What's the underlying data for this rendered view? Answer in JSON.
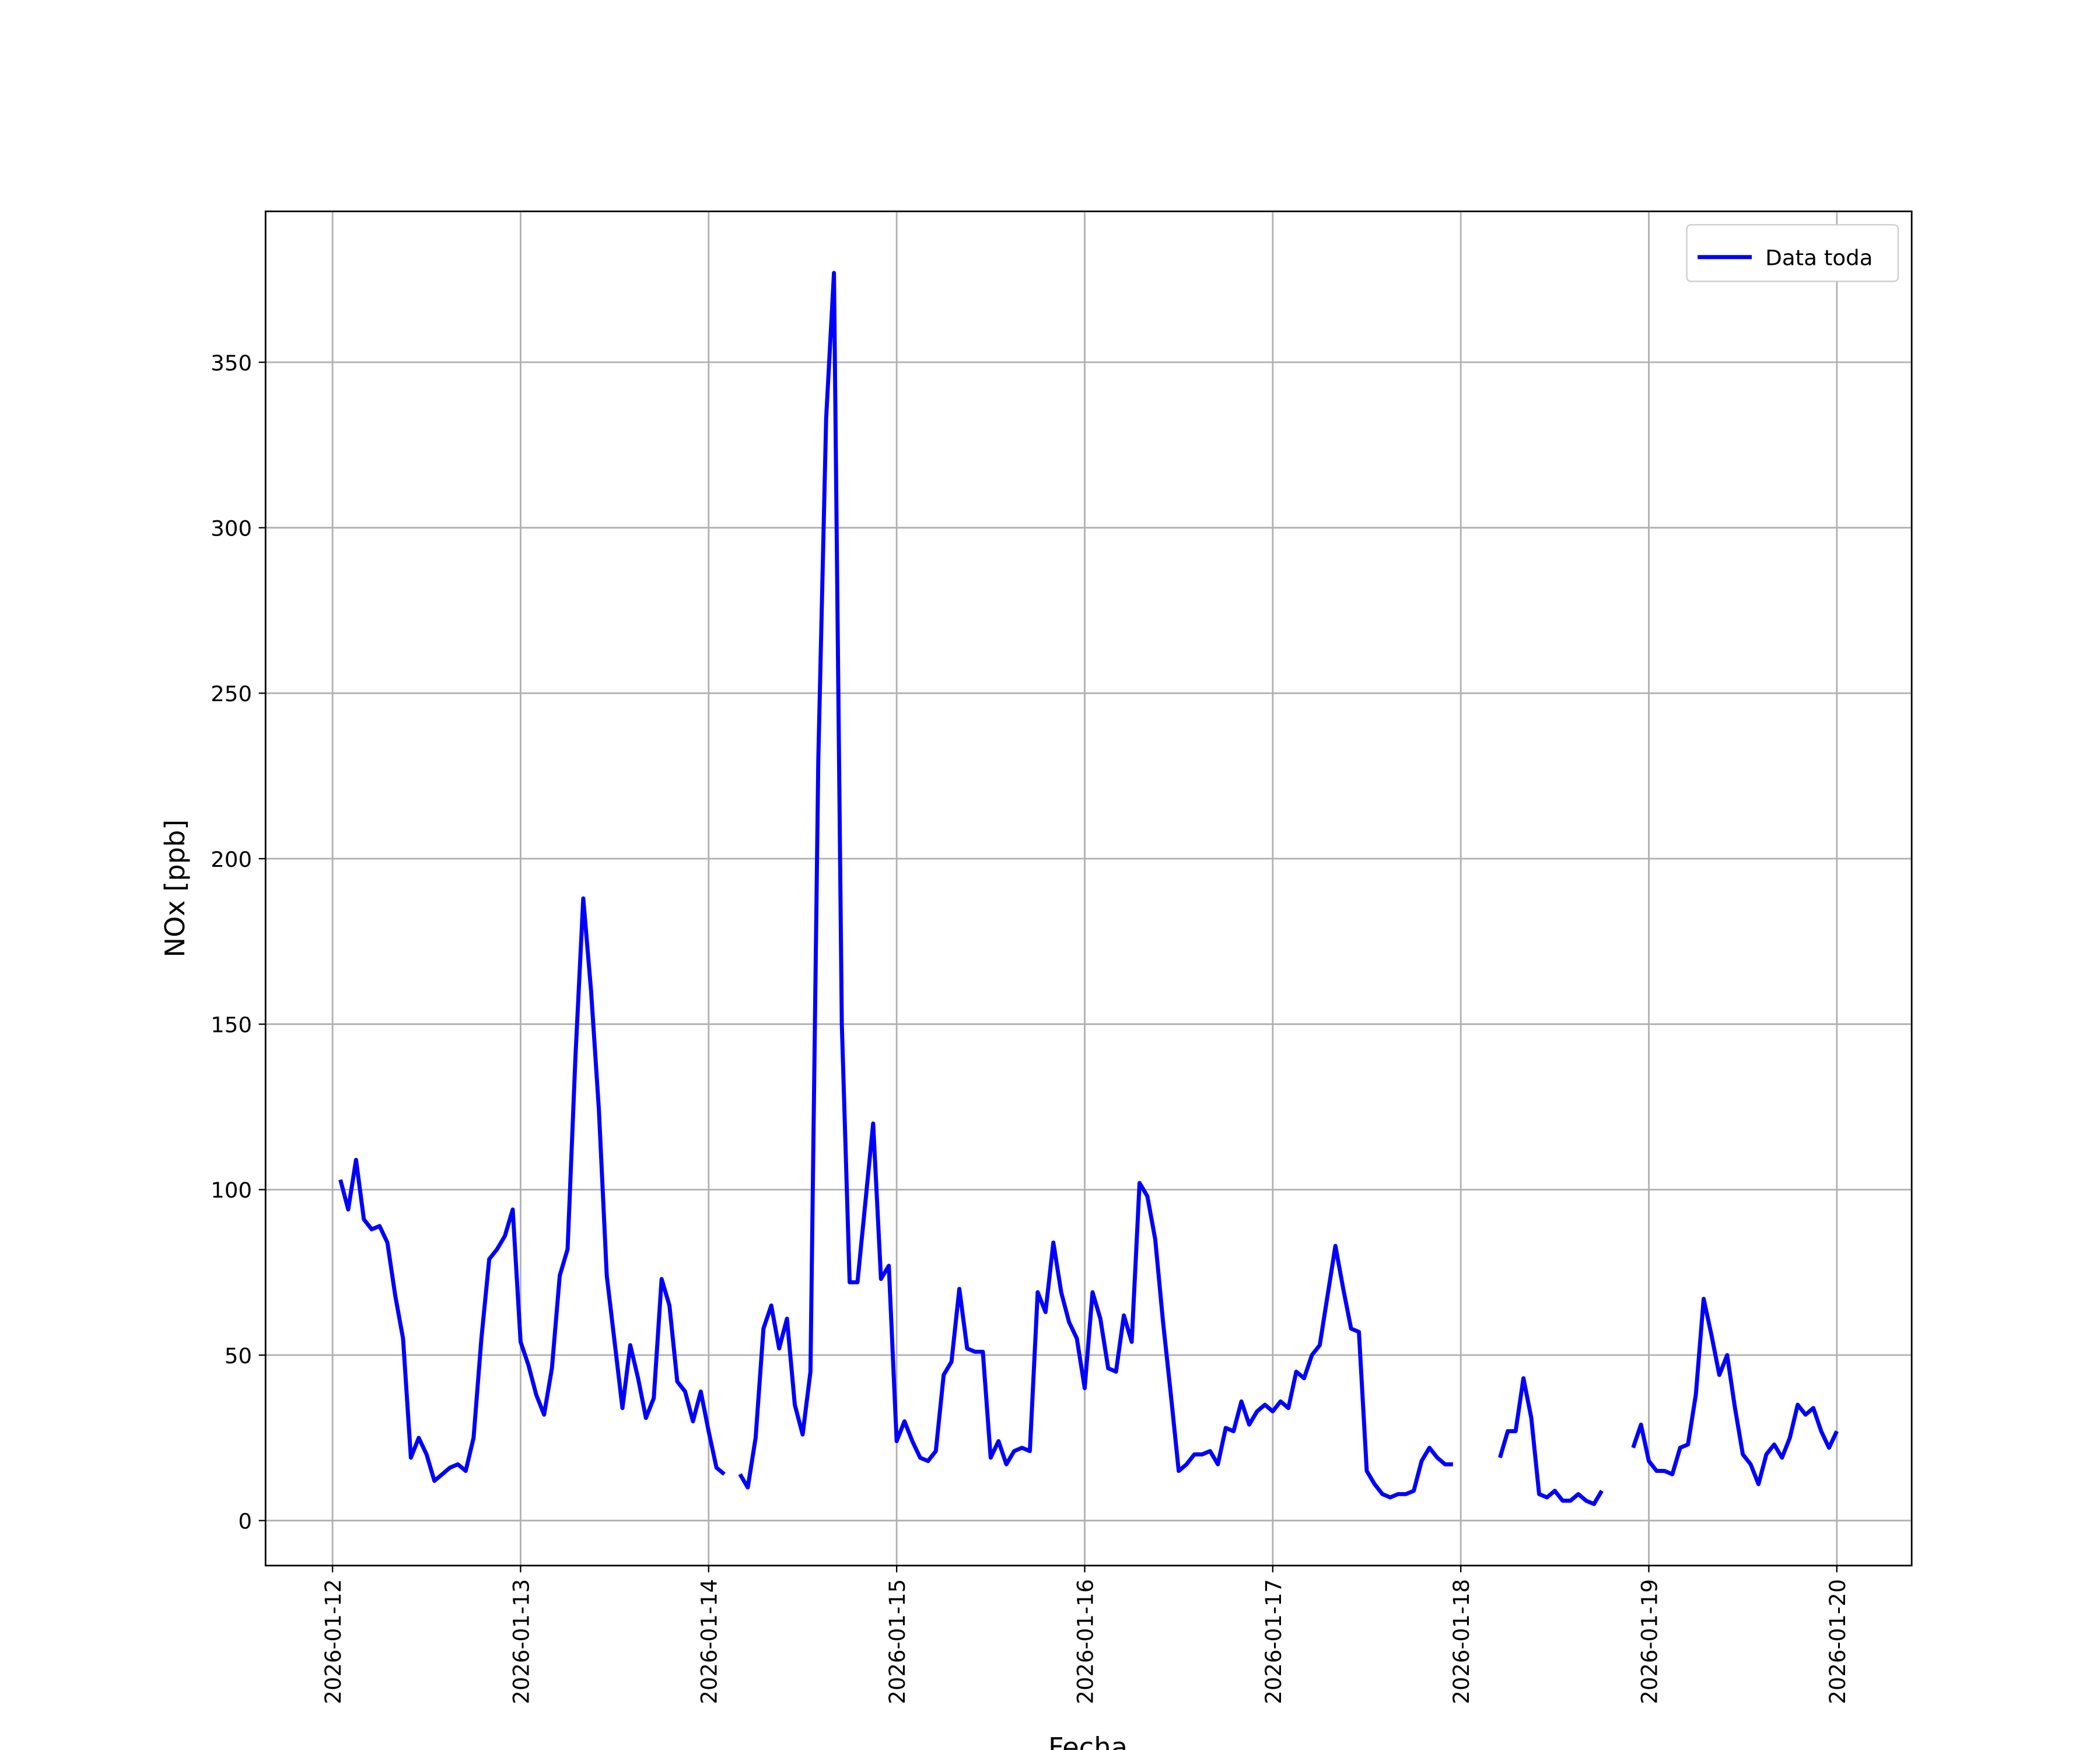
{
  "chart_data": {
    "type": "line",
    "xlabel": "Fecha",
    "ylabel": "NOx [ppb]",
    "x": [
      1,
      2,
      3,
      4,
      5,
      6,
      7,
      8,
      9,
      10,
      11,
      12,
      13,
      14,
      15,
      16,
      17,
      18,
      19,
      20,
      21,
      22,
      23,
      24,
      25,
      26,
      27,
      28,
      29,
      30,
      31,
      32,
      33,
      34,
      35,
      36,
      37,
      38,
      39,
      40,
      41,
      42,
      43,
      44,
      45,
      46,
      47,
      48,
      49,
      50,
      51,
      52,
      53,
      54,
      55,
      56,
      57,
      58,
      59,
      60,
      61,
      62,
      63,
      64,
      65,
      66,
      67,
      68,
      69,
      70,
      71,
      72,
      73,
      74,
      75,
      76,
      77,
      78,
      79,
      80,
      81,
      82,
      83,
      84,
      85,
      86,
      87,
      88,
      89,
      90,
      91,
      92,
      93,
      94,
      95,
      96,
      97,
      98,
      99,
      100,
      101,
      102,
      103,
      104,
      105,
      106,
      107,
      108,
      109,
      110,
      111,
      112,
      113,
      114,
      115,
      116,
      117,
      118,
      119,
      120,
      121,
      122,
      123,
      124,
      125,
      126,
      127,
      128,
      129,
      130,
      131,
      132,
      133,
      134,
      135,
      136,
      137,
      138,
      139,
      140,
      141,
      142,
      143,
      144,
      145,
      146,
      147,
      148,
      149,
      150,
      151,
      152,
      153,
      154,
      155,
      156,
      157,
      158,
      159,
      160,
      161,
      162,
      163,
      164,
      165,
      166,
      167,
      168,
      169,
      170,
      171,
      172,
      173,
      174,
      175,
      176,
      177,
      178,
      179,
      180,
      181,
      182,
      183,
      184,
      185,
      186,
      187,
      188,
      189,
      190,
      191,
      192
    ],
    "series": [
      {
        "name": "Data toda",
        "color": "#0000ff",
        "values": [
          103,
          94,
          109,
          91,
          88,
          89,
          84,
          68,
          55,
          19,
          25,
          20,
          12,
          14,
          16,
          17,
          15,
          25,
          55,
          79,
          82,
          86,
          94,
          54,
          47,
          38,
          32,
          46,
          74,
          82,
          140,
          188,
          160,
          124,
          74,
          54,
          34,
          53,
          43,
          31,
          37,
          73,
          65,
          42,
          39,
          30,
          39,
          27,
          16,
          14,
          null,
          14,
          10,
          25,
          58,
          65,
          52,
          61,
          35,
          26,
          45,
          230,
          333,
          377,
          150,
          72,
          72,
          96,
          120,
          73,
          77,
          24,
          30,
          24,
          19,
          18,
          21,
          44,
          48,
          70,
          52,
          51,
          51,
          19,
          24,
          17,
          21,
          22,
          21,
          69,
          63,
          84,
          69,
          60,
          55,
          40,
          69,
          61,
          46,
          45,
          62,
          54,
          102,
          98,
          85,
          60,
          38,
          15,
          17,
          20,
          20,
          21,
          17,
          28,
          27,
          36,
          29,
          33,
          35,
          33,
          36,
          34,
          45,
          43,
          50,
          53,
          68,
          83,
          70,
          58,
          57,
          15,
          11,
          8,
          7,
          8,
          8,
          9,
          18,
          22,
          19,
          17,
          17,
          null,
          null,
          null,
          null,
          null,
          19,
          27,
          27,
          43,
          31,
          8,
          7,
          9,
          6,
          6,
          8,
          6,
          5,
          9,
          null,
          null,
          null,
          22,
          29,
          18,
          15,
          15,
          14,
          22,
          23,
          38,
          67,
          56,
          44,
          50,
          34,
          20,
          17,
          11,
          20,
          23,
          19,
          25,
          35,
          32,
          34,
          27,
          22,
          27
        ]
      }
    ],
    "xlim": [
      -8.55,
      201.55
    ],
    "xticks": [
      {
        "value": 0,
        "label": "2026-01-12"
      },
      {
        "value": 24,
        "label": "2026-01-13"
      },
      {
        "value": 48,
        "label": "2026-01-14"
      },
      {
        "value": 72,
        "label": "2026-01-15"
      },
      {
        "value": 96,
        "label": "2026-01-16"
      },
      {
        "value": 120,
        "label": "2026-01-17"
      },
      {
        "value": 144,
        "label": "2026-01-18"
      },
      {
        "value": 168,
        "label": "2026-01-19"
      },
      {
        "value": 192,
        "label": "2026-01-20"
      }
    ],
    "ylim": [
      -13.6,
      395.6
    ],
    "yticks": [
      0,
      50,
      100,
      150,
      200,
      250,
      300,
      350
    ],
    "grid": true,
    "legend": "upper right"
  }
}
